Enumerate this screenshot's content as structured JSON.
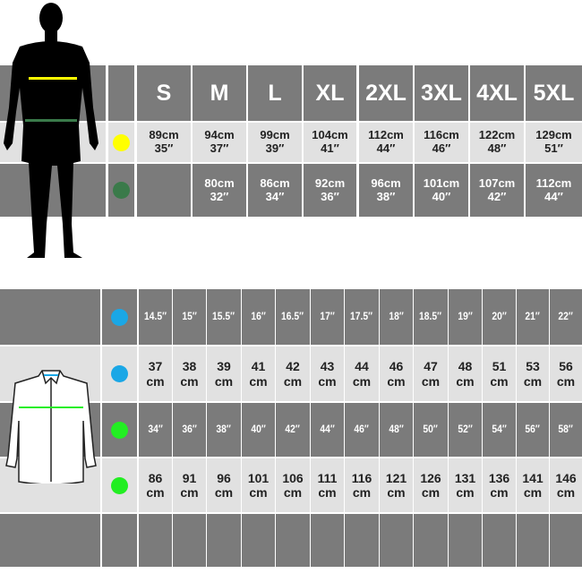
{
  "body_chart": {
    "sizes": [
      "S",
      "M",
      "L",
      "XL",
      "2XL",
      "3XL",
      "4XL",
      "5XL"
    ],
    "rows": [
      {
        "marker_color": "#ffff00",
        "values": [
          [
            "89cm",
            "35″"
          ],
          [
            "94cm",
            "37″"
          ],
          [
            "99cm",
            "39″"
          ],
          [
            "104cm",
            "41″"
          ],
          [
            "112cm",
            "44″"
          ],
          [
            "116cm",
            "46″"
          ],
          [
            "122cm",
            "48″"
          ],
          [
            "129cm",
            "51″"
          ]
        ]
      },
      {
        "marker_color": "#3a7a4a",
        "values": [
          [
            "",
            ""
          ],
          [
            "80cm",
            "32″"
          ],
          [
            "86cm",
            "34″"
          ],
          [
            "92cm",
            "36″"
          ],
          [
            "96cm",
            "38″"
          ],
          [
            "101cm",
            "40″"
          ],
          [
            "107cm",
            "42″"
          ],
          [
            "112cm",
            "44″"
          ]
        ]
      }
    ]
  },
  "shirt_chart": {
    "rows": [
      {
        "marker_color": "#1aa7e6",
        "values": [
          [
            "14.5″"
          ],
          [
            "15″"
          ],
          [
            "15.5″"
          ],
          [
            "16″"
          ],
          [
            "16.5″"
          ],
          [
            "17″"
          ],
          [
            "17.5″"
          ],
          [
            "18″"
          ],
          [
            "18.5″"
          ],
          [
            "19″"
          ],
          [
            "20″"
          ],
          [
            "21″"
          ],
          [
            "22″"
          ]
        ]
      },
      {
        "marker_color": "#1aa7e6",
        "values": [
          [
            "37",
            "cm"
          ],
          [
            "38",
            "cm"
          ],
          [
            "39",
            "cm"
          ],
          [
            "41",
            "cm"
          ],
          [
            "42",
            "cm"
          ],
          [
            "43",
            "cm"
          ],
          [
            "44",
            "cm"
          ],
          [
            "46",
            "cm"
          ],
          [
            "47",
            "cm"
          ],
          [
            "48",
            "cm"
          ],
          [
            "51",
            "cm"
          ],
          [
            "53",
            "cm"
          ],
          [
            "56",
            "cm"
          ]
        ]
      },
      {
        "marker_color": "#22ee22",
        "values": [
          [
            "34″"
          ],
          [
            "36″"
          ],
          [
            "38″"
          ],
          [
            "40″"
          ],
          [
            "42″"
          ],
          [
            "44″"
          ],
          [
            "46″"
          ],
          [
            "48″"
          ],
          [
            "50″"
          ],
          [
            "52″"
          ],
          [
            "54″"
          ],
          [
            "56″"
          ],
          [
            "58″"
          ]
        ]
      },
      {
        "marker_color": "#22ee22",
        "values": [
          [
            "86",
            "cm"
          ],
          [
            "91",
            "cm"
          ],
          [
            "96",
            "cm"
          ],
          [
            "101",
            "cm"
          ],
          [
            "106",
            "cm"
          ],
          [
            "111",
            "cm"
          ],
          [
            "116",
            "cm"
          ],
          [
            "121",
            "cm"
          ],
          [
            "126",
            "cm"
          ],
          [
            "131",
            "cm"
          ],
          [
            "136",
            "cm"
          ],
          [
            "141",
            "cm"
          ],
          [
            "146",
            "cm"
          ]
        ]
      }
    ]
  },
  "colors": {
    "dark": "#7b7b7b",
    "light": "#e1e1e1",
    "chest_line": "#ffff00",
    "waist_line": "#3a7a4a",
    "shirt_collar_line": "#1aa7e6",
    "shirt_chest_line": "#22ee22"
  }
}
